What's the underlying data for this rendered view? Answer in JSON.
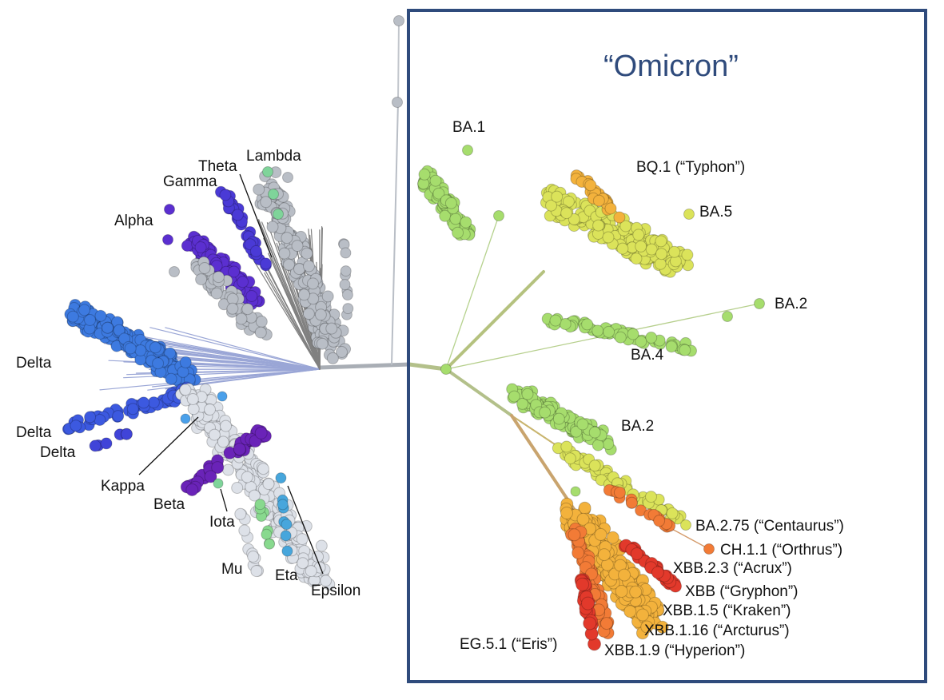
{
  "colors": {
    "background": "#ffffff",
    "box_border": "#2f4b7c",
    "title": "#2f4b7c",
    "line_text": "#111111",
    "delta": "#3d7ae0",
    "alpha": "#5b2fd0",
    "gamma": "#4a3ad6",
    "beta": "#6a23b8",
    "kappa": "#4aa0ea",
    "lambda": "#7fd49a",
    "mu": "#88d98e",
    "eta": "#47a6dc",
    "gray_node": "#b9bec6",
    "light_node": "#dde1e8",
    "omicron_green": "#a6dd6d",
    "omicron_yellow": "#dbe35a",
    "omicron_amber": "#f3b23c",
    "omicron_orange": "#f27b36",
    "omicron_red": "#e2392b"
  },
  "omicron_box": {
    "title": "“Omicron”"
  },
  "variants_pre_omicron": [
    {
      "id": "lambda",
      "label": "Lambda"
    },
    {
      "id": "theta",
      "label": "Theta"
    },
    {
      "id": "gamma",
      "label": "Gamma"
    },
    {
      "id": "alpha",
      "label": "Alpha"
    },
    {
      "id": "delta1",
      "label": "Delta"
    },
    {
      "id": "delta2",
      "label": "Delta"
    },
    {
      "id": "delta3",
      "label": "Delta"
    },
    {
      "id": "kappa",
      "label": "Kappa"
    },
    {
      "id": "beta",
      "label": "Beta"
    },
    {
      "id": "iota",
      "label": "Iota"
    },
    {
      "id": "mu",
      "label": "Mu"
    },
    {
      "id": "eta",
      "label": "Eta"
    },
    {
      "id": "epsilon",
      "label": "Epsilon"
    }
  ],
  "variants_omicron": [
    {
      "id": "ba1",
      "label": "BA.1"
    },
    {
      "id": "bq1",
      "label": "BQ.1 (“Typhon”)"
    },
    {
      "id": "ba5",
      "label": "BA.5"
    },
    {
      "id": "ba2a",
      "label": "BA.2"
    },
    {
      "id": "ba4",
      "label": "BA.4"
    },
    {
      "id": "ba2b",
      "label": "BA.2"
    },
    {
      "id": "ba275",
      "label": "BA.2.75 (“Centaurus”)"
    },
    {
      "id": "ch11",
      "label": "CH.1.1 (“Orthrus”)"
    },
    {
      "id": "xbb23",
      "label": "XBB.2.3 (“Acrux”)"
    },
    {
      "id": "xbb",
      "label": "XBB (“Gryphon”)"
    },
    {
      "id": "xbb15",
      "label": "XBB.1.5 (“Kraken”)"
    },
    {
      "id": "xbb116",
      "label": "XBB.1.16 (“Arcturus”)"
    },
    {
      "id": "eg51",
      "label": "EG.5.1  (“Eris”)"
    },
    {
      "id": "xbb19",
      "label": "XBB.1.9 (“Hyperion”)"
    }
  ]
}
